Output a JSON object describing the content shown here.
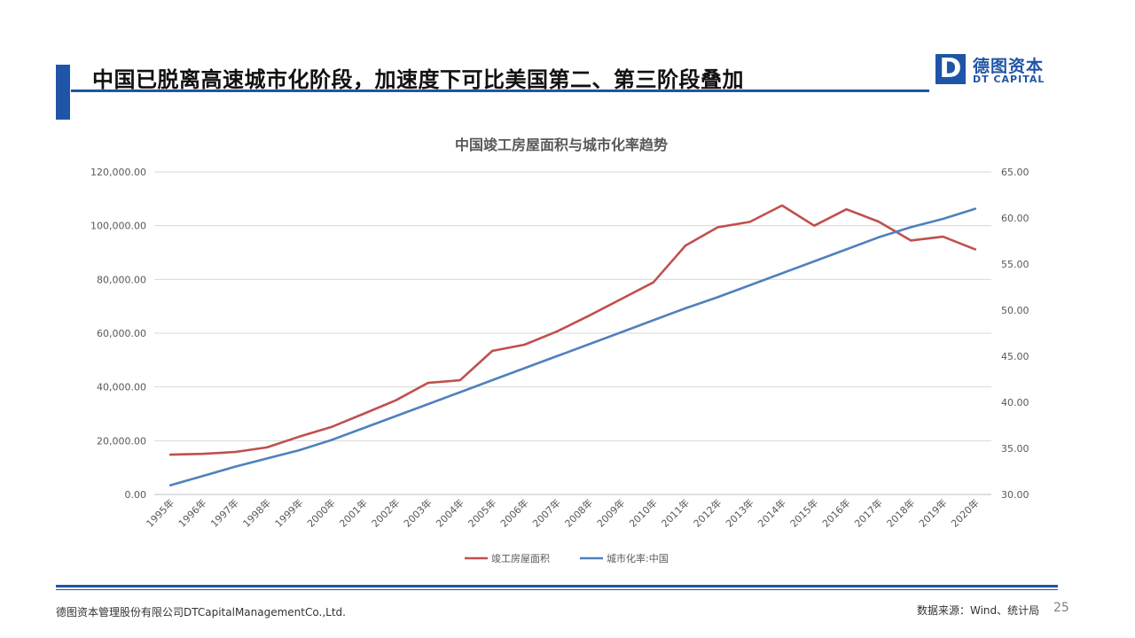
{
  "header": {
    "title": "中国已脱离高速城市化阶段，加速度下可比美国第二、第三阶段叠加"
  },
  "logo": {
    "mark": "D",
    "name_cn": "德图资本",
    "name_en": "DT CAPITAL"
  },
  "chart_data": {
    "type": "line",
    "title": "中国竣工房屋面积与城市化率趋势",
    "categories": [
      "1995年",
      "1996年",
      "1997年",
      "1998年",
      "1999年",
      "2000年",
      "2001年",
      "2002年",
      "2003年",
      "2004年",
      "2005年",
      "2006年",
      "2007年",
      "2008年",
      "2009年",
      "2010年",
      "2011年",
      "2012年",
      "2013年",
      "2014年",
      "2015年",
      "2016年",
      "2017年",
      "2018年",
      "2019年",
      "2020年"
    ],
    "series": [
      {
        "name": "竣工房屋面积",
        "axis": "left",
        "color": "#c0504d",
        "values": [
          14800,
          15100,
          15800,
          17500,
          21500,
          25100,
          30000,
          35000,
          41500,
          42500,
          53400,
          55700,
          60600,
          66500,
          72700,
          78900,
          92600,
          99400,
          101400,
          107500,
          100000,
          106100,
          101500,
          94500,
          95900,
          91200
        ]
      },
      {
        "name": "城市化率:中国",
        "axis": "right",
        "color": "#4f81bd",
        "values": [
          31.0,
          32.0,
          33.0,
          33.9,
          34.8,
          35.9,
          37.2,
          38.5,
          39.8,
          41.1,
          42.4,
          43.7,
          45.0,
          46.3,
          47.6,
          48.9,
          50.2,
          51.4,
          52.7,
          54.0,
          55.3,
          56.6,
          57.9,
          59.0,
          59.9,
          61.0
        ]
      }
    ],
    "y_left": {
      "min": 0,
      "max": 120000,
      "ticks": [
        "0.00",
        "20,000.00",
        "40,000.00",
        "60,000.00",
        "80,000.00",
        "100,000.00",
        "120,000.00"
      ]
    },
    "y_right": {
      "min": 30,
      "max": 65,
      "ticks": [
        "30.00",
        "35.00",
        "40.00",
        "45.00",
        "50.00",
        "55.00",
        "60.00",
        "65.00"
      ]
    },
    "grid": true,
    "legend_position": "bottom"
  },
  "footer": {
    "company": "德图资本管理股份有限公司DTCapitalManagementCo.,Ltd.",
    "source": "数据来源：Wind、统计局",
    "page": "25"
  }
}
